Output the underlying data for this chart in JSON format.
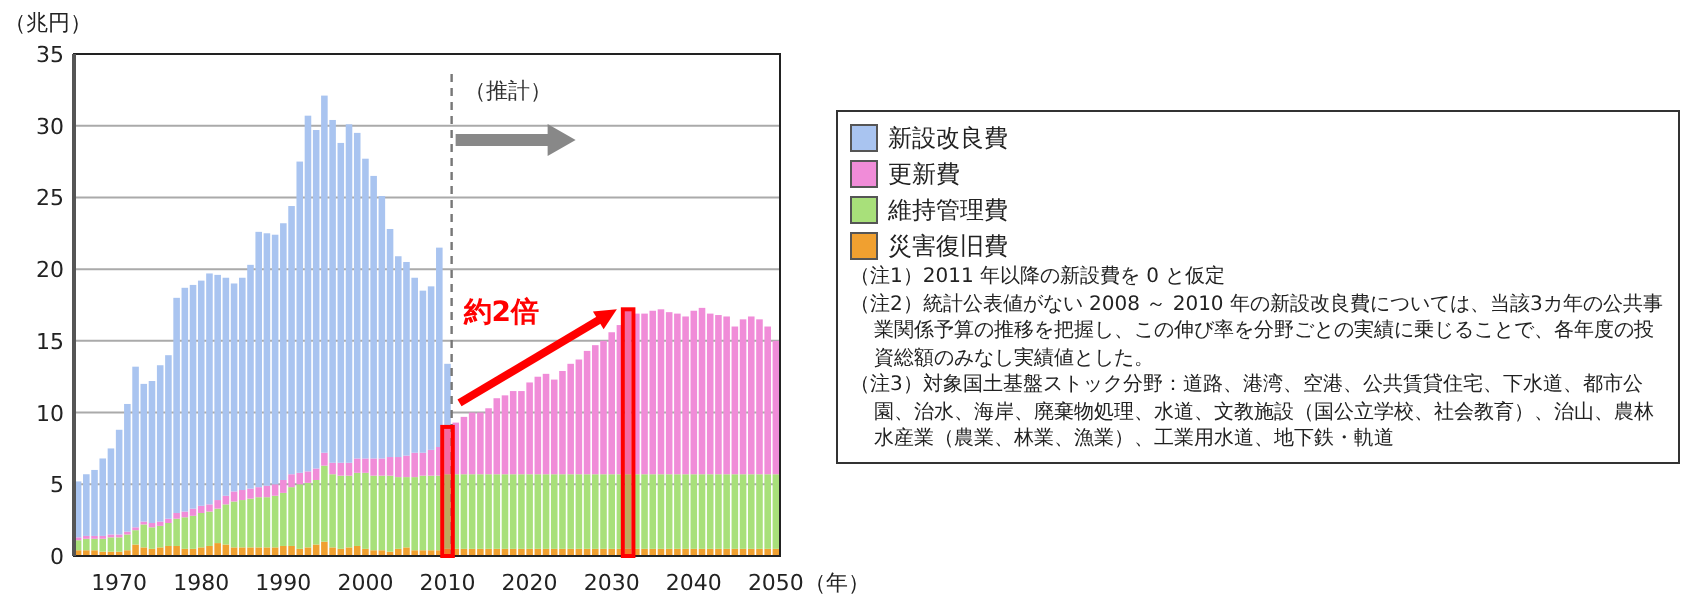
{
  "chart_data": {
    "type": "bar",
    "stacked": true,
    "ylabel": "（兆円）",
    "xlabel": "（年）",
    "x": [
      1965,
      1966,
      1967,
      1968,
      1969,
      1970,
      1971,
      1972,
      1973,
      1974,
      1975,
      1976,
      1977,
      1978,
      1979,
      1980,
      1981,
      1982,
      1983,
      1984,
      1985,
      1986,
      1987,
      1988,
      1989,
      1990,
      1991,
      1992,
      1993,
      1994,
      1995,
      1996,
      1997,
      1998,
      1999,
      2000,
      2001,
      2002,
      2003,
      2004,
      2005,
      2006,
      2007,
      2008,
      2009,
      2010,
      2011,
      2012,
      2013,
      2014,
      2015,
      2016,
      2017,
      2018,
      2019,
      2020,
      2021,
      2022,
      2023,
      2024,
      2025,
      2026,
      2027,
      2028,
      2029,
      2030,
      2031,
      2032,
      2033,
      2034,
      2035,
      2036,
      2037,
      2038,
      2039,
      2040,
      2041,
      2042,
      2043,
      2044,
      2045,
      2046,
      2047,
      2048,
      2049,
      2050
    ],
    "xlim": [
      1964.5,
      2050.5
    ],
    "xticks": [
      1970,
      1980,
      1990,
      2000,
      2010,
      2020,
      2030,
      2040,
      2050
    ],
    "ylim": [
      0,
      35
    ],
    "yticks": [
      0,
      5,
      10,
      15,
      20,
      25,
      30,
      35
    ],
    "grid": "y",
    "legend": "right",
    "series": [
      {
        "name": "災害復旧費",
        "color": "#f0a030",
        "values": [
          0.4,
          0.4,
          0.4,
          0.3,
          0.3,
          0.3,
          0.4,
          0.8,
          0.6,
          0.5,
          0.6,
          0.7,
          0.7,
          0.5,
          0.5,
          0.6,
          0.7,
          0.9,
          0.8,
          0.6,
          0.6,
          0.6,
          0.6,
          0.6,
          0.6,
          0.7,
          0.7,
          0.5,
          0.6,
          0.8,
          1.0,
          0.6,
          0.5,
          0.6,
          0.7,
          0.5,
          0.4,
          0.4,
          0.3,
          0.5,
          0.6,
          0.4,
          0.4,
          0.4,
          0.4,
          0.5,
          0.5,
          0.5,
          0.5,
          0.5,
          0.5,
          0.5,
          0.5,
          0.5,
          0.5,
          0.5,
          0.5,
          0.5,
          0.5,
          0.5,
          0.5,
          0.5,
          0.5,
          0.5,
          0.5,
          0.5,
          0.5,
          0.5,
          0.5,
          0.5,
          0.5,
          0.5,
          0.5,
          0.5,
          0.5,
          0.5,
          0.5,
          0.5,
          0.5,
          0.5,
          0.5,
          0.5,
          0.5,
          0.5,
          0.5,
          0.5
        ]
      },
      {
        "name": "維持管理費",
        "color": "#a8e07a",
        "values": [
          0.7,
          0.8,
          0.8,
          0.9,
          1.0,
          1.0,
          1.1,
          1.0,
          1.6,
          1.5,
          1.5,
          1.6,
          1.9,
          2.2,
          2.3,
          2.4,
          2.4,
          2.4,
          2.8,
          3.2,
          3.3,
          3.4,
          3.5,
          3.5,
          3.6,
          3.7,
          4.1,
          4.5,
          4.5,
          4.5,
          5.3,
          5.1,
          5.1,
          5.0,
          5.1,
          5.3,
          5.2,
          5.2,
          5.3,
          5.0,
          4.9,
          5.1,
          5.2,
          5.2,
          5.2,
          5.2,
          5.2,
          5.2,
          5.2,
          5.2,
          5.2,
          5.2,
          5.2,
          5.2,
          5.2,
          5.2,
          5.2,
          5.2,
          5.2,
          5.2,
          5.2,
          5.2,
          5.2,
          5.2,
          5.2,
          5.2,
          5.2,
          5.2,
          5.2,
          5.2,
          5.2,
          5.2,
          5.2,
          5.2,
          5.2,
          5.2,
          5.2,
          5.2,
          5.2,
          5.2,
          5.2,
          5.2,
          5.2,
          5.2,
          5.2,
          5.2
        ]
      },
      {
        "name": "更新費",
        "color": "#f08cd8",
        "values": [
          0.2,
          0.2,
          0.2,
          0.2,
          0.2,
          0.2,
          0.2,
          0.2,
          0.2,
          0.3,
          0.3,
          0.3,
          0.4,
          0.4,
          0.5,
          0.5,
          0.5,
          0.6,
          0.6,
          0.7,
          0.7,
          0.7,
          0.7,
          0.8,
          0.8,
          0.9,
          0.9,
          0.8,
          0.8,
          0.8,
          0.9,
          0.8,
          0.9,
          0.9,
          1.0,
          1.0,
          1.2,
          1.2,
          1.3,
          1.4,
          1.5,
          1.7,
          1.6,
          1.8,
          2.0,
          3.3,
          3.6,
          4.0,
          4.3,
          4.3,
          4.6,
          5.3,
          5.5,
          5.8,
          5.8,
          6.4,
          6.8,
          7.0,
          6.6,
          7.2,
          7.7,
          8.0,
          8.6,
          9.0,
          9.3,
          9.9,
          10.4,
          11.5,
          11.2,
          11.2,
          11.4,
          11.5,
          11.3,
          11.2,
          11.0,
          11.4,
          11.6,
          11.2,
          11.1,
          11.0,
          10.3,
          10.8,
          11.0,
          10.8,
          10.3,
          9.3
        ]
      },
      {
        "name": "新設改良費",
        "color": "#a9c4f0",
        "values": [
          3.9,
          4.3,
          4.6,
          5.4,
          6.0,
          7.3,
          8.9,
          11.2,
          9.6,
          9.9,
          10.9,
          11.4,
          15.0,
          15.6,
          15.6,
          15.7,
          16.1,
          15.7,
          15.2,
          14.5,
          14.8,
          15.6,
          17.8,
          17.6,
          17.4,
          17.9,
          18.7,
          21.7,
          24.8,
          23.6,
          24.9,
          23.9,
          22.3,
          23.6,
          22.7,
          20.9,
          19.7,
          18.3,
          15.9,
          14.0,
          13.5,
          12.2,
          11.3,
          11.4,
          13.9,
          4.4,
          null,
          null,
          null,
          null,
          null,
          null,
          null,
          null,
          null,
          null,
          null,
          null,
          null,
          null,
          null,
          null,
          null,
          null,
          null,
          null,
          null,
          null,
          null,
          null,
          null,
          null,
          null,
          null,
          null,
          null,
          null,
          null,
          null,
          null,
          null,
          null,
          null,
          null,
          null,
          null
        ]
      }
    ],
    "ref_lines": [
      {
        "axis": "x",
        "value": 2010.5,
        "label": "（推計）",
        "line_style": "dashed",
        "color": "#777777"
      }
    ],
    "bands": [
      {
        "axis": "x",
        "from": 2009.5,
        "to": 2010.5,
        "color": "#ff0000"
      },
      {
        "axis": "x",
        "from": 2031.5,
        "to": 2032.5,
        "color": "#ff0000"
      }
    ],
    "annotations": [
      "約2倍",
      "（注1）2011 年以降の新設費を 0 と仮定",
      "（注2）統計公表値がない 2008 ～ 2010 年の新設改良費については、当該3カ年の公共事業関係予算の推移を把握し、この伸び率を分野ごとの実績に乗じることで、各年度の投資総額のみなし実績値とした。",
      "（注3）対象国土基盤ストック分野：道路、港湾、空港、公共賃貸住宅、下水道、都市公園、治水、海岸、廃棄物処理、水道、文教施設（国公立学校、社会教育）、治山、農林水産業（農業、林業、漁業）、工業用水道、地下鉄・軌道"
    ]
  }
}
